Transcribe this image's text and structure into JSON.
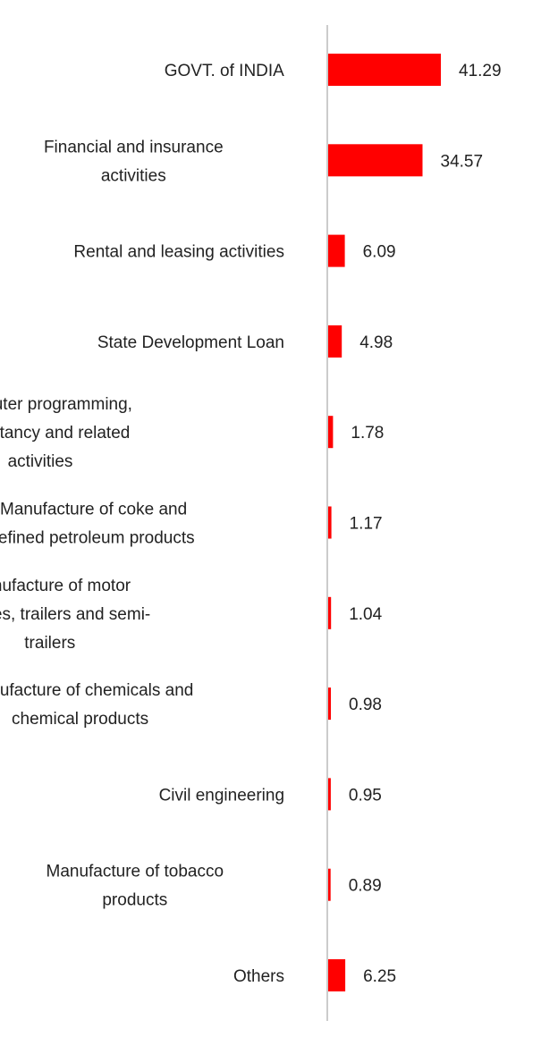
{
  "chart_data": {
    "type": "bar",
    "orientation": "horizontal",
    "title": "",
    "xlabel": "",
    "ylabel": "",
    "xlim": [
      0,
      41.29
    ],
    "bar_color": "#ff0000",
    "axis_color": "#cccccc",
    "grid": false,
    "legend": "none",
    "categories": [
      "GOVT. of INDIA",
      "Financial and insurance activities",
      "Rental and leasing activities",
      "State Development Loan",
      "Computer programming, consultancy and related activities",
      "Manufacture of coke and refined petroleum products",
      "Manufacture of motor vehicles, trailers and semi-trailers",
      "Manufacture of chemicals and chemical products",
      "Civil engineering",
      "Manufacture of tobacco products",
      "Others"
    ],
    "category_lines": [
      [
        "GOVT. of INDIA"
      ],
      [
        "Financial and insurance",
        "activities"
      ],
      [
        "Rental and leasing activities"
      ],
      [
        "State Development Loan"
      ],
      [
        "Computer programming,",
        "consultancy and related",
        "activities"
      ],
      [
        "Manufacture of coke and",
        "refined petroleum products"
      ],
      [
        "Manufacture of motor",
        "vehicles, trailers and semi-",
        "trailers"
      ],
      [
        "Manufacture of chemicals and",
        "chemical products"
      ],
      [
        "Civil engineering"
      ],
      [
        "Manufacture of tobacco",
        "products"
      ],
      [
        "Others"
      ]
    ],
    "values": [
      41.29,
      34.57,
      6.09,
      4.98,
      1.78,
      1.17,
      1.04,
      0.98,
      0.95,
      0.89,
      6.25
    ],
    "value_labels": [
      "41.29",
      "34.57",
      "6.09",
      "4.98",
      "1.78",
      "1.17",
      "1.04",
      "0.98",
      "0.95",
      "0.89",
      "6.25"
    ]
  }
}
